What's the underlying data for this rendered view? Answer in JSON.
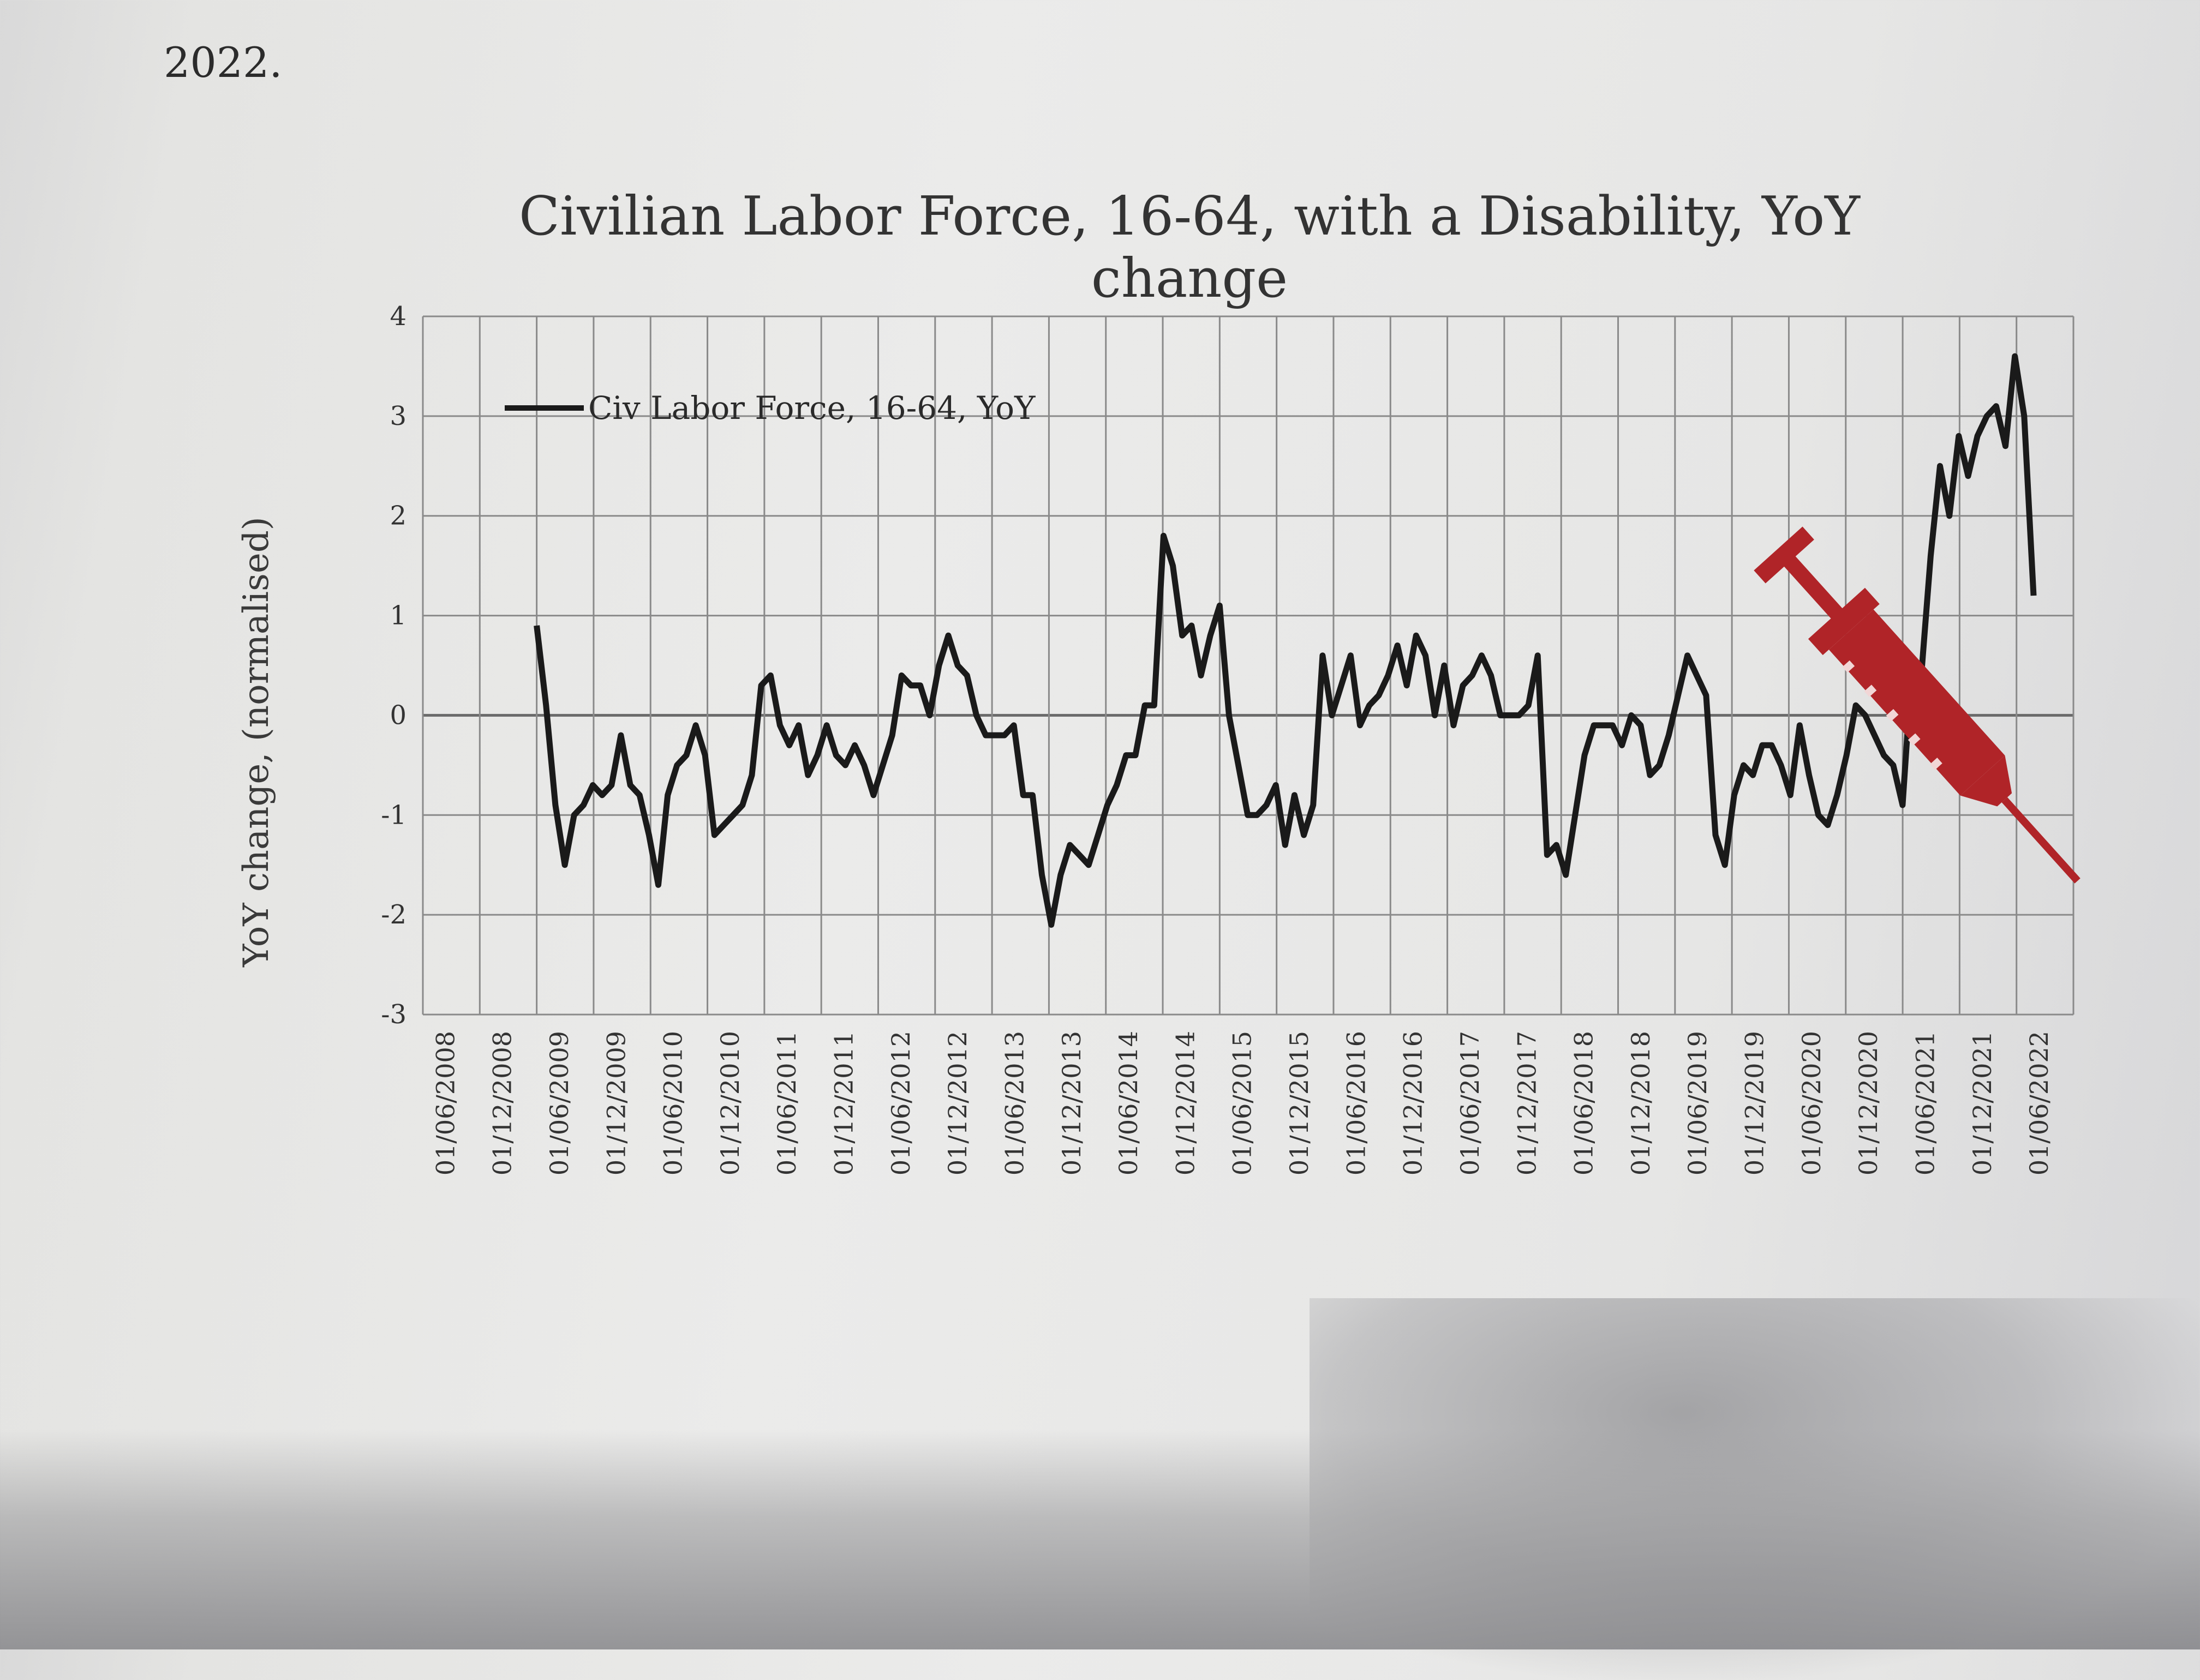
{
  "page": {
    "text_fragment": "2022."
  },
  "chart_data": {
    "type": "line",
    "title": "Civilian Labor Force, 16-64, with a Disability, YoY change",
    "xlabel": "",
    "ylabel": "YoY change, (normalised)",
    "ylim": [
      -3,
      4
    ],
    "yticks": [
      "4",
      "3",
      "2",
      "1",
      "0",
      "-1",
      "-2",
      "-3"
    ],
    "xticks": [
      "01/06/2008",
      "01/12/2008",
      "01/06/2009",
      "01/12/2009",
      "01/06/2010",
      "01/12/2010",
      "01/06/2011",
      "01/12/2011",
      "01/06/2012",
      "01/12/2012",
      "01/06/2013",
      "01/12/2013",
      "01/06/2014",
      "01/12/2014",
      "01/06/2015",
      "01/12/2015",
      "01/06/2016",
      "01/12/2016",
      "01/06/2017",
      "01/12/2017",
      "01/06/2018",
      "01/12/2018",
      "01/06/2019",
      "01/12/2019",
      "01/06/2020",
      "01/12/2020",
      "01/06/2021",
      "01/12/2021",
      "01/06/2022"
    ],
    "grid": true,
    "legend": "top-left",
    "series": [
      {
        "name": "Civ Labor Force, 16-64, YoY",
        "color": "#1a1a1a",
        "values": [
          0.9,
          0.1,
          -0.9,
          -1.5,
          -1.0,
          -0.9,
          -0.7,
          -0.8,
          -0.7,
          -0.2,
          -0.7,
          -0.8,
          -1.2,
          -1.7,
          -0.8,
          -0.5,
          -0.4,
          -0.1,
          -0.4,
          -1.2,
          -1.1,
          -1.0,
          -0.9,
          -0.6,
          0.3,
          0.4,
          -0.1,
          -0.3,
          -0.1,
          -0.6,
          -0.4,
          -0.1,
          -0.4,
          -0.5,
          -0.3,
          -0.5,
          -0.8,
          -0.5,
          -0.2,
          0.4,
          0.3,
          0.3,
          0.0,
          0.5,
          0.8,
          0.5,
          0.4,
          0.0,
          -0.2,
          -0.2,
          -0.2,
          -0.1,
          -0.8,
          -0.8,
          -1.6,
          -2.1,
          -1.6,
          -1.3,
          -1.4,
          -1.5,
          -1.2,
          -0.9,
          -0.7,
          -0.4,
          -0.4,
          0.1,
          0.1,
          1.8,
          1.5,
          0.8,
          0.9,
          0.4,
          0.8,
          1.1,
          0.0,
          -0.5,
          -1.0,
          -1.0,
          -0.9,
          -0.7,
          -1.3,
          -0.8,
          -1.2,
          -0.9,
          0.6,
          0.0,
          0.3,
          0.6,
          -0.1,
          0.1,
          0.2,
          0.4,
          0.7,
          0.3,
          0.8,
          0.6,
          0.0,
          0.5,
          -0.1,
          0.3,
          0.4,
          0.6,
          0.4,
          0.0,
          0.0,
          0.0,
          0.1,
          0.6,
          -1.4,
          -1.3,
          -1.6,
          -1.0,
          -0.4,
          -0.1,
          -0.1,
          -0.1,
          -0.3,
          0.0,
          -0.1,
          -0.6,
          -0.5,
          -0.2,
          0.2,
          0.6,
          0.4,
          0.2,
          -1.2,
          -1.5,
          -0.8,
          -0.5,
          -0.6,
          -0.3,
          -0.3,
          -0.5,
          -0.8,
          -0.1,
          -0.6,
          -1.0,
          -1.1,
          -0.8,
          -0.4,
          0.1,
          0.0,
          -0.2,
          -0.4,
          -0.5,
          -0.9,
          0.5,
          0.4,
          1.6,
          2.5,
          2.0,
          2.8,
          2.4,
          2.8,
          3.0,
          3.1,
          2.7,
          3.6,
          3.0,
          1.2
        ]
      }
    ]
  }
}
